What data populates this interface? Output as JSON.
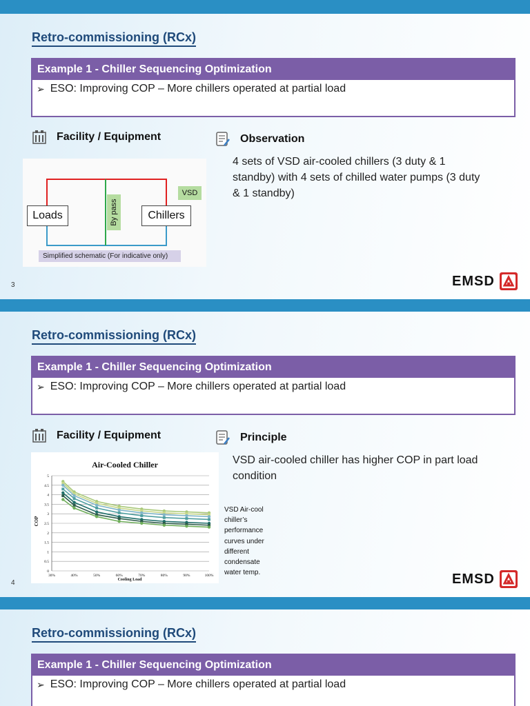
{
  "slides": [
    {
      "title": "Retro-commissioning (RCx)",
      "box_header": "Example 1 - Chiller Sequencing Optimization",
      "box_bullet": "ESO: Improving COP – More chillers operated at partial load",
      "left_heading": "Facility / Equipment",
      "right_heading": "Observation",
      "right_text": "4 sets of VSD air-cooled chillers (3 duty & 1 standby) with 4 sets of chilled water pumps (3 duty & 1 standby)",
      "page_number": "3",
      "diagram": {
        "loads": "Loads",
        "chillers": "Chillers",
        "bypass": "By pass",
        "vsd": "VSD",
        "caption": "Simplified schematic (For indicative only)"
      }
    },
    {
      "title": "Retro-commissioning (RCx)",
      "box_header": "Example 1 - Chiller Sequencing Optimization",
      "box_bullet": "ESO: Improving COP – More chillers operated at partial load",
      "left_heading": "Facility / Equipment",
      "right_heading": "Principle",
      "right_text": "VSD air-cooled chiller has higher COP in part load condition",
      "side_note": "VSD Air-cool chiller’s performance curves under different condensate water temp.",
      "page_number": "4"
    },
    {
      "title": "Retro-commissioning (RCx)",
      "box_header": "Example 1 - Chiller Sequencing Optimization",
      "box_bullet": "ESO: Improving COP – More chillers operated at partial load"
    }
  ],
  "logo_text": "EMSD",
  "colors": {
    "band": "#2a8fc4",
    "purple": "#7b5ea7",
    "title": "#1f4a7a"
  },
  "chart_data": {
    "type": "line",
    "title": "Air-Cooled Chiller",
    "xlabel": "Cooling Load",
    "ylabel": "COP",
    "categories": [
      "30%",
      "40%",
      "50%",
      "60%",
      "70%",
      "80%",
      "90%",
      "100%"
    ],
    "x": [
      0.35,
      0.4,
      0.5,
      0.6,
      0.7,
      0.8,
      0.9,
      1.0
    ],
    "ylim": [
      0,
      5
    ],
    "yticks": [
      "0",
      "0.5",
      "1",
      "1.5",
      "2",
      "2.5",
      "3",
      "3.5",
      "4",
      "4.5",
      "5"
    ],
    "series": [
      {
        "color": "#a9c97a",
        "values": [
          4.7,
          4.15,
          3.65,
          3.4,
          3.25,
          3.15,
          3.1,
          3.05
        ]
      },
      {
        "color": "#c8d88a",
        "values": [
          4.6,
          4.05,
          3.55,
          3.3,
          3.15,
          3.05,
          3.0,
          2.95
        ]
      },
      {
        "color": "#7fb4c8",
        "values": [
          4.5,
          3.95,
          3.45,
          3.2,
          3.05,
          2.95,
          2.9,
          2.85
        ]
      },
      {
        "color": "#4f9fa0",
        "values": [
          4.3,
          3.8,
          3.3,
          3.05,
          2.9,
          2.8,
          2.75,
          2.7
        ]
      },
      {
        "color": "#1f6f6a",
        "values": [
          4.1,
          3.6,
          3.1,
          2.85,
          2.7,
          2.6,
          2.55,
          2.5
        ]
      },
      {
        "color": "#2c5a4a",
        "values": [
          3.95,
          3.45,
          2.95,
          2.75,
          2.6,
          2.5,
          2.45,
          2.4
        ]
      },
      {
        "color": "#6fae5a",
        "values": [
          3.75,
          3.3,
          2.85,
          2.6,
          2.5,
          2.4,
          2.35,
          2.3
        ]
      }
    ]
  }
}
